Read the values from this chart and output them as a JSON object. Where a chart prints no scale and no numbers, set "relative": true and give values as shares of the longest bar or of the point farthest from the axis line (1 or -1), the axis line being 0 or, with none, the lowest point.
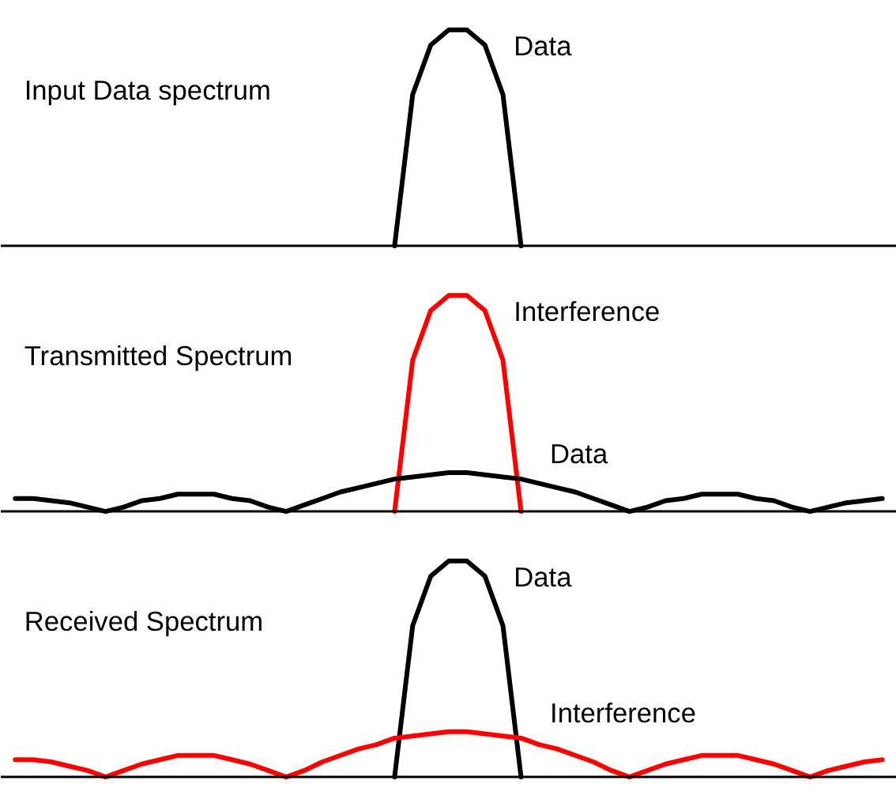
{
  "chart_data": [
    {
      "type": "line",
      "title": "Input Data spectrum",
      "relative": true,
      "categories": [
        null,
        null,
        null,
        null,
        null,
        null,
        null,
        null,
        null,
        null,
        null,
        null,
        null,
        null,
        null,
        null,
        null,
        null,
        null,
        null,
        null,
        null,
        null,
        null,
        null,
        null,
        null,
        null,
        null,
        null,
        null,
        null,
        null,
        null,
        null,
        null,
        null,
        null,
        null,
        null,
        null,
        null,
        null,
        null,
        null,
        null,
        null,
        null,
        null
      ],
      "series": [
        {
          "name": "Data",
          "color": "#000000",
          "values": [
            null,
            null,
            null,
            null,
            null,
            null,
            null,
            null,
            null,
            null,
            null,
            null,
            null,
            null,
            null,
            null,
            null,
            null,
            null,
            null,
            null,
            0,
            0.7,
            0.93,
            1,
            1,
            0.93,
            0.7,
            0,
            null,
            null,
            null,
            null,
            null,
            null,
            null,
            null,
            null,
            null,
            null,
            null,
            null,
            null,
            null,
            null,
            null,
            null,
            null,
            null
          ]
        }
      ]
    },
    {
      "type": "line",
      "title": "Transmitted Spectrum",
      "relative": true,
      "categories": [
        null,
        null,
        null,
        null,
        null,
        null,
        null,
        null,
        null,
        null,
        null,
        null,
        null,
        null,
        null,
        null,
        null,
        null,
        null,
        null,
        null,
        null,
        null,
        null,
        null,
        null,
        null,
        null,
        null,
        null,
        null,
        null,
        null,
        null,
        null,
        null,
        null,
        null,
        null,
        null,
        null,
        null,
        null,
        null,
        null,
        null,
        null,
        null,
        null
      ],
      "series": [
        {
          "name": "Interference",
          "color": "#ff0000",
          "values": [
            null,
            null,
            null,
            null,
            null,
            null,
            null,
            null,
            null,
            null,
            null,
            null,
            null,
            null,
            null,
            null,
            null,
            null,
            null,
            null,
            null,
            0,
            0.7,
            0.93,
            1,
            1,
            0.93,
            0.7,
            0,
            null,
            null,
            null,
            null,
            null,
            null,
            null,
            null,
            null,
            null,
            null,
            null,
            null,
            null,
            null,
            null,
            null,
            null,
            null,
            null
          ]
        },
        {
          "name": "Data",
          "color": "#000000",
          "values": [
            0.06,
            0.06,
            0.05,
            0.04,
            0.02,
            0,
            0.02,
            0.05,
            0.06,
            0.08,
            0.08,
            0.08,
            0.06,
            0.05,
            0.02,
            0,
            0.03,
            0.06,
            0.09,
            0.11,
            0.13,
            0.15,
            0.16,
            0.17,
            0.18,
            0.18,
            0.17,
            0.16,
            0.15,
            0.13,
            0.11,
            0.09,
            0.06,
            0.03,
            0,
            0.02,
            0.05,
            0.06,
            0.08,
            0.08,
            0.08,
            0.06,
            0.05,
            0.02,
            0,
            0.02,
            0.04,
            0.05,
            0.06
          ]
        }
      ]
    },
    {
      "type": "line",
      "title": "Received Spectrum",
      "relative": true,
      "categories": [
        null,
        null,
        null,
        null,
        null,
        null,
        null,
        null,
        null,
        null,
        null,
        null,
        null,
        null,
        null,
        null,
        null,
        null,
        null,
        null,
        null,
        null,
        null,
        null,
        null,
        null,
        null,
        null,
        null,
        null,
        null,
        null,
        null,
        null,
        null,
        null,
        null,
        null,
        null,
        null,
        null,
        null,
        null,
        null,
        null,
        null,
        null,
        null,
        null
      ],
      "series": [
        {
          "name": "Data",
          "color": "#000000",
          "values": [
            null,
            null,
            null,
            null,
            null,
            null,
            null,
            null,
            null,
            null,
            null,
            null,
            null,
            null,
            null,
            null,
            null,
            null,
            null,
            null,
            null,
            0,
            0.7,
            0.93,
            1,
            1,
            0.93,
            0.7,
            0,
            null,
            null,
            null,
            null,
            null,
            null,
            null,
            null,
            null,
            null,
            null,
            null,
            null,
            null,
            null,
            null,
            null,
            null,
            null,
            null
          ]
        },
        {
          "name": "Interference",
          "color": "#ff0000",
          "values": [
            0.08,
            0.08,
            0.07,
            0.05,
            0.03,
            0,
            0.03,
            0.06,
            0.08,
            0.1,
            0.1,
            0.1,
            0.08,
            0.06,
            0.03,
            0,
            0.03,
            0.07,
            0.1,
            0.13,
            0.15,
            0.18,
            0.19,
            0.2,
            0.21,
            0.21,
            0.2,
            0.19,
            0.18,
            0.15,
            0.13,
            0.1,
            0.07,
            0.03,
            0,
            0.03,
            0.06,
            0.08,
            0.1,
            0.1,
            0.1,
            0.08,
            0.06,
            0.03,
            0,
            0.03,
            0.05,
            0.07,
            0.08
          ]
        }
      ]
    }
  ]
}
